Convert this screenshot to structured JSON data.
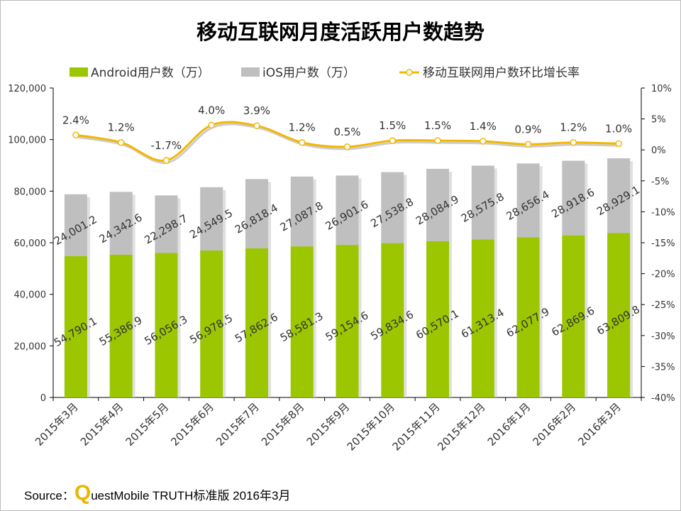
{
  "chart_data": {
    "type": "bar",
    "title": "移动互联网月度活跃用户数趋势",
    "categories": [
      "2015年3月",
      "2015年4月",
      "2015年5月",
      "2015年6月",
      "2015年7月",
      "2015年8月",
      "2015年9月",
      "2015年10月",
      "2015年11月",
      "2015年12月",
      "2016年1月",
      "2016年2月",
      "2016年3月"
    ],
    "series": [
      {
        "name": "Android用户数（万）",
        "kind": "stacked-bar",
        "color": "#9bc600",
        "values": [
          54790.1,
          55386.9,
          56056.3,
          56978.5,
          57862.6,
          58581.3,
          59154.6,
          59834.6,
          60570.1,
          61313.4,
          62077.9,
          62869.6,
          63809.8
        ],
        "labels": [
          "54,790.1",
          "55,386.9",
          "56,056.3",
          "56,978.5",
          "57,862.6",
          "58,581.3",
          "59,154.6",
          "59,834.6",
          "60,570.1",
          "61,313.4",
          "62,077.9",
          "62,869.6",
          "63,809.8"
        ]
      },
      {
        "name": "iOS用户数（万）",
        "kind": "stacked-bar",
        "color": "#bfbfbf",
        "values": [
          24001.2,
          24342.6,
          22298.7,
          24549.5,
          26818.4,
          27087.8,
          26901.6,
          27538.8,
          28084.9,
          28575.8,
          28656.4,
          28918.6,
          28929.1
        ],
        "labels": [
          "24,001.2",
          "24,342.6",
          "22,298.7",
          "24,549.5",
          "26,818.4",
          "27,087.8",
          "26,901.6",
          "27,538.8",
          "28,084.9",
          "28,575.8",
          "28,656.4",
          "28,918.6",
          "28,929.1"
        ]
      },
      {
        "name": "移动互联网用户数环比增长率",
        "kind": "line",
        "axis": "right",
        "color": "#f2b800",
        "values": [
          2.4,
          1.2,
          -1.7,
          4.0,
          3.9,
          1.2,
          0.5,
          1.5,
          1.5,
          1.4,
          0.9,
          1.2,
          1.0
        ],
        "labels": [
          "2.4%",
          "1.2%",
          "-1.7%",
          "4.0%",
          "3.9%",
          "1.2%",
          "0.5%",
          "1.5%",
          "1.5%",
          "1.4%",
          "0.9%",
          "1.2%",
          "1.0%"
        ]
      }
    ],
    "ylim": [
      0,
      120000
    ],
    "yticks": [
      "0",
      "20,000",
      "40,000",
      "60,000",
      "80,000",
      "100,000",
      "120,000"
    ],
    "y2lim": [
      -40,
      10
    ],
    "y2ticks": [
      "-40%",
      "-35%",
      "-30%",
      "-25%",
      "-20%",
      "-15%",
      "-10%",
      "-5%",
      "0%",
      "5%",
      "10%"
    ],
    "legend": "top",
    "grid": false
  },
  "source": {
    "prefix": "Source：",
    "logo_letter": "Q",
    "text": "uestMobile TRUTH标准版 2016年3月"
  }
}
